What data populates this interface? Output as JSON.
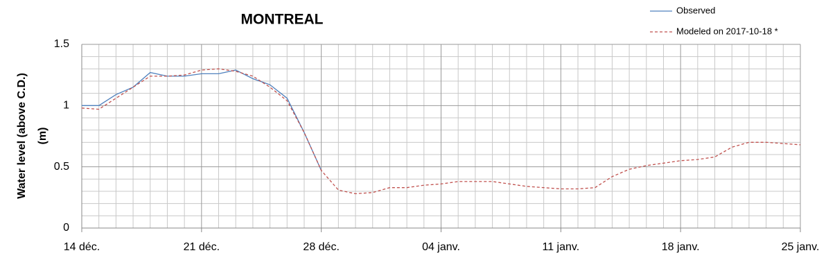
{
  "chart_data": {
    "type": "line",
    "title": "MONTREAL",
    "y_label": [
      "Water level (above C.D.)",
      "(m)"
    ],
    "categories": [
      "14 déc.",
      null,
      null,
      null,
      null,
      null,
      null,
      "21 déc.",
      null,
      null,
      null,
      null,
      null,
      null,
      "28 déc.",
      null,
      null,
      null,
      null,
      null,
      null,
      "04 janv.",
      null,
      null,
      null,
      null,
      null,
      null,
      "11 janv.",
      null,
      null,
      null,
      null,
      null,
      null,
      "18 janv.",
      null,
      null,
      null,
      null,
      null,
      null,
      "25 janv."
    ],
    "series": [
      {
        "name": "Observed",
        "color": "#4f81bd",
        "dashed": false,
        "values": [
          1.0,
          1.0,
          1.09,
          1.15,
          1.27,
          1.24,
          1.24,
          1.26,
          1.26,
          1.29,
          1.22,
          1.17,
          1.06,
          0.78,
          0.47,
          null,
          null,
          null,
          null,
          null,
          null,
          null,
          null,
          null,
          null,
          null,
          null,
          null,
          null,
          null,
          null,
          null,
          null,
          null,
          null,
          null,
          null,
          null,
          null,
          null,
          null,
          null,
          null
        ]
      },
      {
        "name": "Modeled on 2017-10-18 *",
        "color": "#c0504d",
        "dashed": true,
        "values": [
          0.98,
          0.97,
          1.06,
          1.15,
          1.24,
          1.24,
          1.25,
          1.29,
          1.3,
          1.28,
          1.24,
          1.15,
          1.04,
          0.78,
          0.47,
          0.31,
          0.28,
          0.29,
          0.33,
          0.33,
          0.35,
          0.36,
          0.38,
          0.38,
          0.38,
          0.36,
          0.34,
          0.33,
          0.32,
          0.32,
          0.33,
          0.42,
          0.48,
          0.51,
          0.53,
          0.55,
          0.56,
          0.58,
          0.66,
          0.7,
          0.7,
          0.69,
          0.68
        ]
      }
    ],
    "ylim": [
      0,
      1.5
    ],
    "yticks": [
      0,
      0.5,
      1,
      1.5
    ],
    "grid": true
  }
}
